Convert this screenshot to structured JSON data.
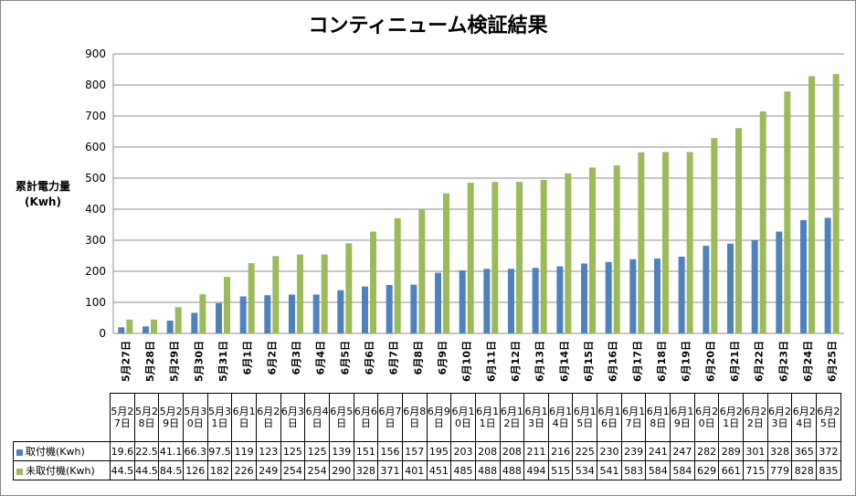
{
  "chart_data": {
    "type": "bar",
    "title": "コンティニューム検証結果",
    "ylabel": "累計電力量\n(Kwh)",
    "xlabel": "",
    "ylim": [
      0,
      900
    ],
    "yticks": [
      0,
      100,
      200,
      300,
      400,
      500,
      600,
      700,
      800,
      900
    ],
    "grid": true,
    "categories": [
      "5月27日",
      "5月28日",
      "5月29日",
      "5月30日",
      "5月31日",
      "6月1日",
      "6月2日",
      "6月3日",
      "6月4日",
      "6月5日",
      "6月6日",
      "6月7日",
      "6月8日",
      "6月9日",
      "6月10日",
      "6月11日",
      "6月12日",
      "6月13日",
      "6月14日",
      "6月15日",
      "6月16日",
      "6月17日",
      "6月18日",
      "6月19日",
      "6月20日",
      "6月21日",
      "6月22日",
      "6月23日",
      "6月24日",
      "6月25日"
    ],
    "series": [
      {
        "name": "取付機(Kwh)",
        "color": "#4F81BD",
        "values": [
          19.6,
          22.5,
          41.1,
          66.3,
          97.5,
          119,
          123,
          125,
          125,
          139,
          151,
          156,
          157,
          195,
          203,
          208,
          208,
          211,
          216,
          225,
          230,
          239,
          241,
          247,
          282,
          289,
          301,
          328,
          365,
          372
        ]
      },
      {
        "name": "未取付機(Kwh)",
        "color": "#9BBB59",
        "values": [
          44.5,
          44.5,
          84.5,
          126,
          182,
          226,
          249,
          254,
          254,
          290,
          328,
          371,
          401,
          451,
          485,
          488,
          488,
          494,
          515,
          534,
          541,
          583,
          584,
          584,
          629,
          661,
          715,
          779,
          828,
          835
        ]
      }
    ],
    "legend_placement": "data-table"
  }
}
